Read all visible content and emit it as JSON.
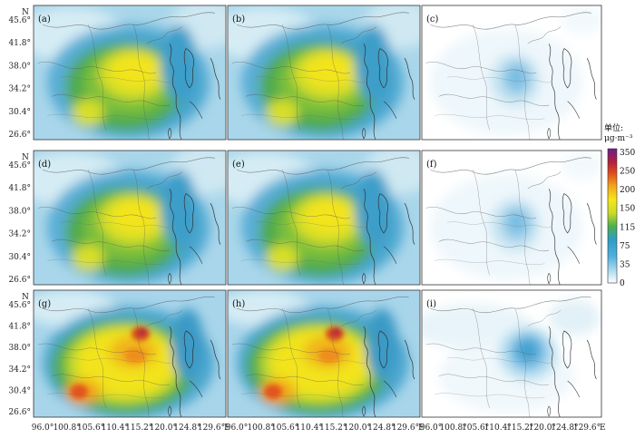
{
  "figure": {
    "north_label": "N",
    "east_label": "E",
    "lat_ticks": [
      "45.6°",
      "41.8°",
      "38.0°",
      "34.2°",
      "30.4°",
      "26.6°"
    ],
    "lon_ticks": [
      "96.0°",
      "100.8°",
      "105.6°",
      "110.4°",
      "115.2°",
      "120.0°",
      "124.8°",
      "129.6°"
    ],
    "panel_labels": [
      "(a)",
      "(b)",
      "(c)",
      "(d)",
      "(e)",
      "(f)",
      "(g)",
      "(h)",
      "(i)"
    ],
    "colorbar": {
      "title": "单位:",
      "unit": "μg·m⁻³",
      "ticks": [
        "350",
        "250",
        "200",
        "150",
        "115",
        "75",
        "35",
        "0"
      ],
      "colors": [
        "#ffffff",
        "#b8e0ef",
        "#5fb7df",
        "#2f9bd0",
        "#52b15a",
        "#3d9a3c",
        "#c4d82a",
        "#f4e81c",
        "#f8d21a",
        "#f0a21a",
        "#e4551f",
        "#c2261d",
        "#8e1a5a",
        "#6a1f8a"
      ]
    }
  }
}
